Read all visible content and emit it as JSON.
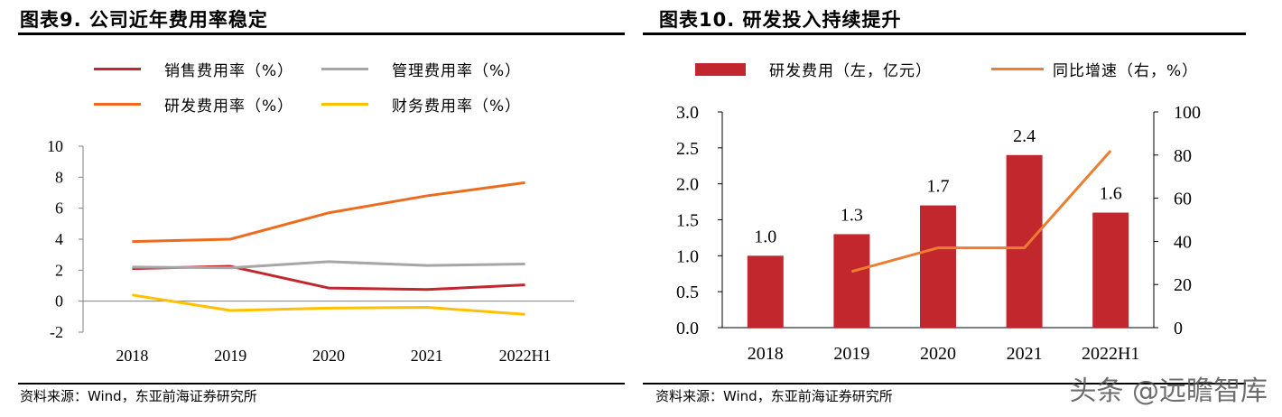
{
  "left": {
    "title": "图表9.   公司近年费用率稳定",
    "source": "资料来源：Wind，东亚前海证券研究所"
  },
  "right": {
    "title": "图表10. 研发投入持续提升",
    "source": "资料来源：Wind，东亚前海证券研究所"
  },
  "watermark": "头条 @远瞻智库",
  "chart_data": [
    {
      "type": "line",
      "title": "公司近年费用率稳定",
      "categories": [
        "2018",
        "2019",
        "2020",
        "2021",
        "2022H1"
      ],
      "ylim": [
        -2,
        10
      ],
      "yticks": [
        "10",
        "8",
        "6",
        "4",
        "2",
        "0",
        "-2"
      ],
      "legend_placement": "top",
      "grid": false,
      "series": [
        {
          "name": "销售费用率（%）",
          "color": "#c1272d",
          "values": [
            2.1,
            2.25,
            0.85,
            0.75,
            1.05
          ]
        },
        {
          "name": "管理费用率（%）",
          "color": "#a6a6a6",
          "values": [
            2.2,
            2.15,
            2.55,
            2.3,
            2.4
          ]
        },
        {
          "name": "研发费用率（%）",
          "color": "#ed6b1f",
          "values": [
            3.85,
            4.0,
            5.7,
            6.8,
            7.65
          ]
        },
        {
          "name": "财务费用率（%）",
          "color": "#ffc000",
          "values": [
            0.4,
            -0.6,
            -0.45,
            -0.4,
            -0.85
          ]
        }
      ]
    },
    {
      "type": "bar",
      "title": "研发投入持续提升",
      "categories": [
        "2018",
        "2019",
        "2020",
        "2021",
        "2022H1"
      ],
      "ylim": [
        0,
        3.0
      ],
      "yticks": [
        "3.0",
        "2.5",
        "2.0",
        "1.5",
        "1.0",
        "0.5",
        "0.0"
      ],
      "y2lim": [
        0,
        100
      ],
      "y2ticks": [
        "100",
        "80",
        "60",
        "40",
        "20",
        "0"
      ],
      "legend_placement": "top",
      "grid": false,
      "series": [
        {
          "name": "研发费用（左，亿元）",
          "type": "bar",
          "axis": "left",
          "color": "#c1272d",
          "values": [
            1.0,
            1.3,
            1.7,
            2.4,
            1.6
          ],
          "labels": [
            "1.0",
            "1.3",
            "1.7",
            "2.4",
            "1.6"
          ]
        },
        {
          "name": "同比增速（右，%）",
          "type": "line",
          "axis": "right",
          "color": "#ed7d31",
          "values": [
            null,
            26,
            37,
            37,
            82
          ]
        }
      ]
    }
  ]
}
